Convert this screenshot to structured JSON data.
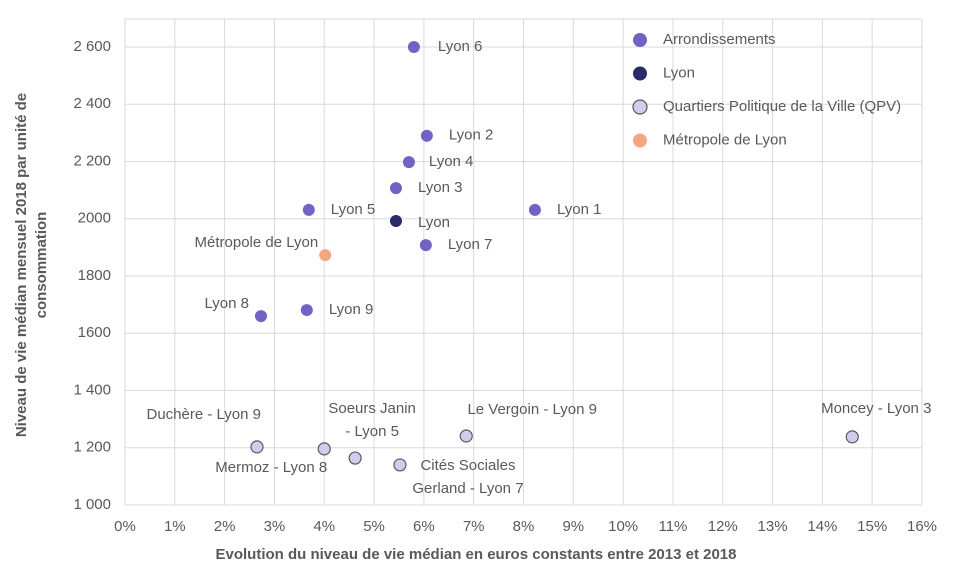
{
  "chart_data": {
    "type": "scatter",
    "xlabel": "Evolution du niveau de vie médian en euros constants entre 2013 et 2018",
    "ylabel": [
      "Niveau de vie médian mensuel 2018 par unité de",
      "consommation"
    ],
    "xlim": [
      0,
      16
    ],
    "xticks": [
      {
        "value": 0,
        "label": "0%"
      },
      {
        "value": 1,
        "label": "1%"
      },
      {
        "value": 2,
        "label": "2%"
      },
      {
        "value": 3,
        "label": "3%"
      },
      {
        "value": 4,
        "label": "4%"
      },
      {
        "value": 5,
        "label": "5%"
      },
      {
        "value": 6,
        "label": "6%"
      },
      {
        "value": 7,
        "label": "7%"
      },
      {
        "value": 8,
        "label": "8%"
      },
      {
        "value": 9,
        "label": "9%"
      },
      {
        "value": 10,
        "label": "10%"
      },
      {
        "value": 11,
        "label": "11%"
      },
      {
        "value": 12,
        "label": "12%"
      },
      {
        "value": 13,
        "label": "13%"
      },
      {
        "value": 14,
        "label": "14%"
      },
      {
        "value": 15,
        "label": "15%"
      },
      {
        "value": 16,
        "label": "16%"
      }
    ],
    "ylim": [
      1000,
      2600
    ],
    "yticks": [
      {
        "value": 1000,
        "label": "1 000"
      },
      {
        "value": 1200,
        "label": "1 200"
      },
      {
        "value": 1400,
        "label": "1 400"
      },
      1600,
      1800,
      2000,
      {
        "value": 2200,
        "label": "2 200"
      },
      {
        "value": 2400,
        "label": "2 400"
      },
      {
        "value": 2600,
        "label": "2 600"
      }
    ],
    "grid": true,
    "legend": "top-right",
    "series": [
      {
        "name": "Arrondissements",
        "color": "#6f63c6",
        "x": [
          5.8,
          6.06,
          5.7,
          5.44,
          3.69,
          8.23,
          6.04,
          2.73,
          3.65
        ],
        "values": [
          2600,
          2290,
          2198,
          2107,
          2031,
          2031,
          1908,
          1660,
          1681
        ],
        "labels": [
          [
            "Lyon 6"
          ],
          [
            "Lyon 2"
          ],
          [
            "Lyon 4"
          ],
          [
            "Lyon 3"
          ],
          [
            "Lyon 5"
          ],
          [
            "Lyon 1"
          ],
          [
            "Lyon 7"
          ],
          [
            "Lyon 8"
          ],
          [
            "Lyon 9"
          ]
        ]
      },
      {
        "name": "Lyon",
        "color": "#2b2a6a",
        "x": [
          5.44
        ],
        "values": [
          1992
        ],
        "labels": [
          [
            "Lyon"
          ]
        ]
      },
      {
        "name": "Quartiers Politique de la Ville (QPV)",
        "color": "#d0ccee",
        "x": [
          2.65,
          4.0,
          4.62,
          5.52,
          6.85,
          14.6
        ],
        "values": [
          1203,
          1196,
          1164,
          1140,
          1241,
          1238
        ],
        "labels": [
          [
            "Duchère - Lyon 9"
          ],
          [
            "Mermoz - Lyon 8"
          ],
          [
            "Soeurs Janin",
            "- Lyon 5"
          ],
          [
            "Cités Sociales",
            "Gerland - Lyon 7"
          ],
          [
            "Le Vergoin - Lyon 9"
          ],
          [
            "Moncey - Lyon 3"
          ]
        ]
      },
      {
        "name": "Métropole de Lyon",
        "color": "#f4a582",
        "x": [
          4.02
        ],
        "values": [
          1873
        ],
        "labels": [
          [
            "Métropole de Lyon"
          ]
        ]
      }
    ]
  }
}
